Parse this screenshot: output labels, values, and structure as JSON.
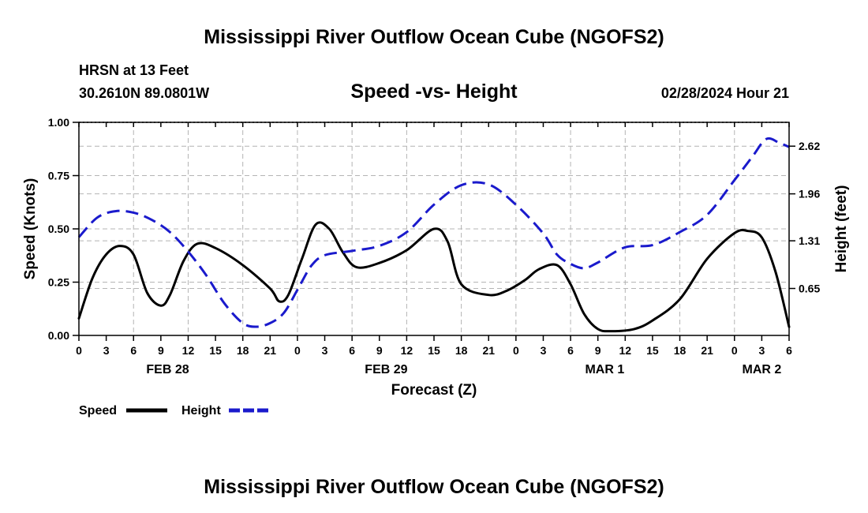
{
  "title": "Mississippi River Outflow Ocean Cube (NGOFS2)",
  "station": "HRSN at 13 Feet",
  "coords": "30.2610N  89.0801W",
  "subtitle": "Speed -vs- Height",
  "datetime": "02/28/2024 Hour 21",
  "footer_title": "Mississippi River Outflow Ocean Cube (NGOFS2)",
  "chart_data": {
    "type": "line",
    "xlabel": "Forecast (Z)",
    "ylabel": "Speed (Knots)",
    "ylabel_right": "Height (feet)",
    "grid": true,
    "x_hours_range": [
      0,
      78
    ],
    "ylim": [
      0,
      1
    ],
    "ylim_right": [
      0,
      2.95
    ],
    "x_tick_labels": [
      "0",
      "3",
      "6",
      "9",
      "12",
      "15",
      "18",
      "21",
      "0",
      "3",
      "6",
      "9",
      "12",
      "15",
      "18",
      "21",
      "0",
      "3",
      "6",
      "9",
      "12",
      "15",
      "18",
      "21",
      "0",
      "3",
      "6"
    ],
    "date_labels": [
      {
        "label": "FEB 28",
        "hour": 9.75
      },
      {
        "label": "FEB 29",
        "hour": 33.75
      },
      {
        "label": "MAR 1",
        "hour": 57.75
      },
      {
        "label": "MAR 2",
        "hour": 75
      }
    ],
    "y_ticks": [
      "0.00",
      "0.25",
      "0.50",
      "0.75",
      "1.00"
    ],
    "y_ticks_right": [
      "0.65",
      "1.31",
      "1.96",
      "2.62"
    ],
    "legend": [
      {
        "name": "Speed",
        "color": "#000000",
        "style": "solid"
      },
      {
        "name": "Height",
        "color": "#1a1acc",
        "style": "dashed"
      }
    ],
    "series": [
      {
        "name": "Speed",
        "axis": "left",
        "x": [
          0,
          1.5,
          3,
          4.5,
          6,
          7.5,
          9,
          10,
          11.5,
          13,
          15,
          18,
          21,
          22,
          23,
          24.5,
          26,
          27.5,
          29,
          30.5,
          33,
          36,
          39,
          40.5,
          42,
          45,
          47,
          49,
          50.5,
          52.5,
          54,
          55.5,
          57,
          58.5,
          61,
          63,
          66,
          69,
          72,
          73.5,
          75,
          76.5,
          78
        ],
        "values": [
          0.08,
          0.27,
          0.38,
          0.42,
          0.38,
          0.2,
          0.14,
          0.19,
          0.35,
          0.43,
          0.41,
          0.33,
          0.22,
          0.16,
          0.19,
          0.36,
          0.52,
          0.5,
          0.39,
          0.32,
          0.34,
          0.4,
          0.5,
          0.44,
          0.24,
          0.19,
          0.21,
          0.26,
          0.31,
          0.33,
          0.24,
          0.1,
          0.03,
          0.02,
          0.03,
          0.07,
          0.17,
          0.36,
          0.48,
          0.49,
          0.46,
          0.3,
          0.04
        ]
      },
      {
        "name": "Height",
        "axis": "right",
        "x": [
          0,
          2,
          4,
          6,
          8,
          10,
          12,
          14,
          16,
          18,
          19.5,
          21,
          22.5,
          24,
          25.5,
          27,
          30,
          33,
          36,
          39,
          42,
          45,
          48,
          51,
          52.5,
          54,
          55.5,
          57,
          60,
          63,
          66,
          69,
          72,
          74,
          75.5,
          77,
          78
        ],
        "values": [
          1.36,
          1.63,
          1.72,
          1.7,
          1.6,
          1.43,
          1.16,
          0.83,
          0.44,
          0.17,
          0.12,
          0.17,
          0.31,
          0.63,
          0.96,
          1.11,
          1.17,
          1.24,
          1.43,
          1.81,
          2.08,
          2.09,
          1.81,
          1.41,
          1.12,
          0.99,
          0.93,
          1.01,
          1.22,
          1.25,
          1.43,
          1.67,
          2.15,
          2.48,
          2.72,
          2.66,
          2.61
        ]
      }
    ]
  }
}
